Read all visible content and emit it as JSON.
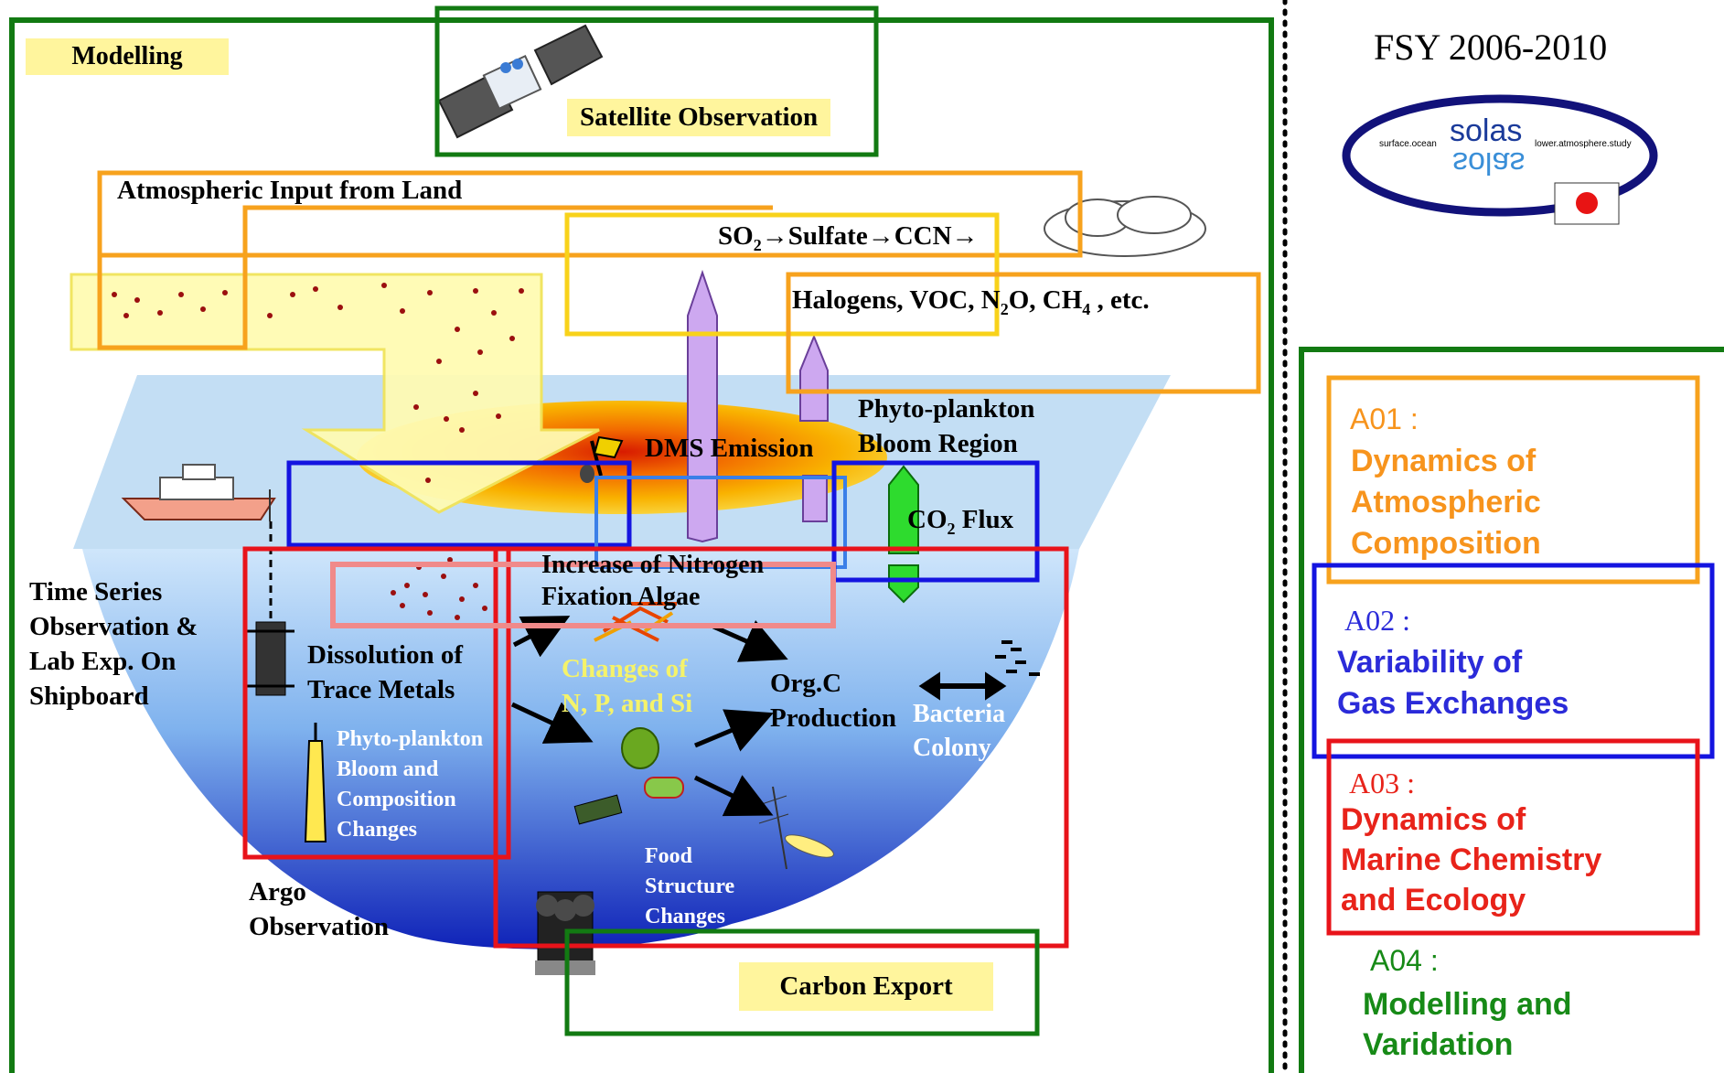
{
  "diagram": {
    "labels": {
      "modelling": "Modelling",
      "satellite": "Satellite Observation",
      "atm_input": "Atmospheric Input from Land",
      "so2_pre": "SO",
      "so2_sub": "2",
      "so2_post": "→Sulfate→CCN→",
      "halogens_pre": "Halogens, VOC, N",
      "halogens_sub1": "2",
      "halogens_mid": "O, CH",
      "halogens_sub2": "4",
      "halogens_post": " , etc.",
      "dms": "DMS Emission",
      "phyto_bloom_region": "Phyto-plankton\nBloom Region",
      "co2_pre": "CO",
      "co2_sub": "2",
      "co2_post": " Flux",
      "nitrogen": "Increase of Nitrogen\nFixation Algae",
      "time_series": "Time Series\nObservation &\nLab Exp. On\nShipboard",
      "dissolution": "Dissolution of\nTrace Metals",
      "changes_nps": "Changes of\nN, P, and Si",
      "orgc": "Org.C\nProduction",
      "bacteria": "Bacteria\nColony",
      "phyto_bloom_comp": "Phyto-plankton\nBloom and\nComposition\nChanges",
      "argo": "Argo\nObservation",
      "food": "Food\nStructure\nChanges",
      "carbon_export": "Carbon Export"
    }
  },
  "sidebar": {
    "fsy": "FSY 2006-2010",
    "logo": {
      "word": "solas",
      "left_text": "surface.ocean",
      "right_text": "lower.atmosphere.study"
    },
    "items": [
      {
        "code": "A01 :",
        "title": "Dynamics of\nAtmospheric\nComposition",
        "color": "#f7941d"
      },
      {
        "code": "A02 :",
        "title": "Variability of\nGas Exchanges",
        "color": "#2b2bd9"
      },
      {
        "code": "A03 :",
        "title": "Dynamics of\nMarine Chemistry\nand Ecology",
        "color": "#e8231a"
      },
      {
        "code": "A04 :",
        "title": "Modelling and\nVaridation",
        "color": "#178a17"
      }
    ]
  },
  "colors": {
    "green_frame": "#127a12",
    "orange": "#f7a21d",
    "yellow": "#f8d21a",
    "blue": "#1414e0",
    "red": "#e8131a",
    "pink": "#f08a8a",
    "highlight": "#fff59d"
  }
}
